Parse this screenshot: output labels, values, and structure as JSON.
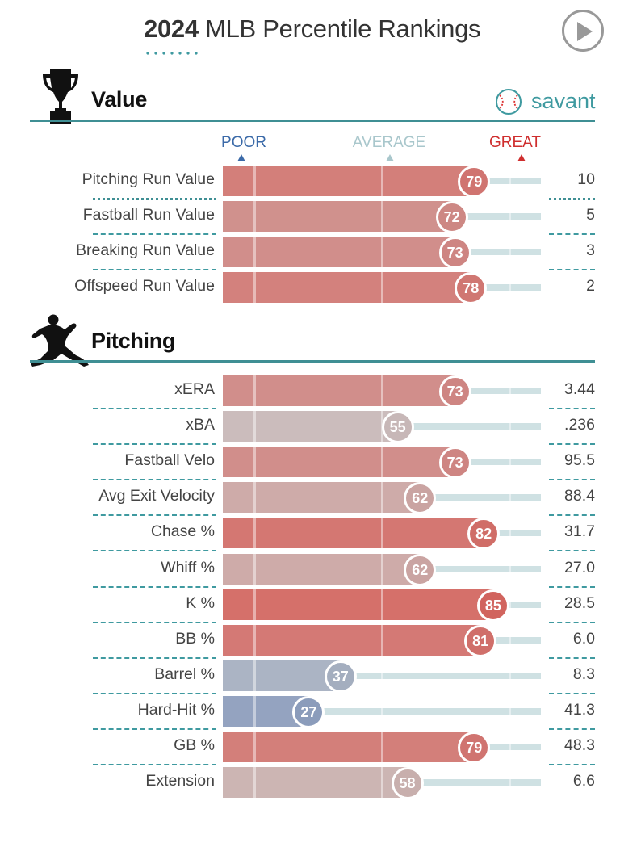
{
  "header": {
    "year": "2024",
    "title": "MLB Percentile Rankings"
  },
  "brand": {
    "name": "savant"
  },
  "icons": {
    "play": "play-icon",
    "trophy": "trophy-icon",
    "pitcher": "pitcher-silhouette-icon",
    "baseball": "baseball-icon"
  },
  "scale": {
    "poor": "POOR",
    "average": "AVERAGE",
    "great": "GREAT",
    "poor_color": "#3b6aa8",
    "average_color": "#a9c7cc",
    "great_color": "#cf2e2e"
  },
  "sections": [
    {
      "title": "Value"
    },
    {
      "title": "Pitching"
    }
  ],
  "chart_data": {
    "type": "bar",
    "xlim": [
      0,
      100
    ],
    "series": [
      {
        "section": "Value",
        "categories": [
          "Pitching Run Value",
          "Fastball Run Value",
          "Breaking Run Value",
          "Offspeed Run Value"
        ],
        "percentiles": [
          79,
          72,
          73,
          78
        ],
        "values": [
          "10",
          "5",
          "3",
          "2"
        ]
      },
      {
        "section": "Pitching",
        "categories": [
          "xERA",
          "xBA",
          "Fastball Velo",
          "Avg Exit Velocity",
          "Chase %",
          "Whiff %",
          "K %",
          "BB %",
          "Barrel %",
          "Hard-Hit %",
          "GB %",
          "Extension"
        ],
        "percentiles": [
          73,
          55,
          73,
          62,
          82,
          62,
          85,
          81,
          37,
          27,
          79,
          58
        ],
        "values": [
          "3.44",
          ".236",
          "95.5",
          "88.4",
          "31.7",
          "27.0",
          "28.5",
          "6.0",
          "8.3",
          "41.3",
          "48.3",
          "6.6"
        ]
      }
    ]
  }
}
